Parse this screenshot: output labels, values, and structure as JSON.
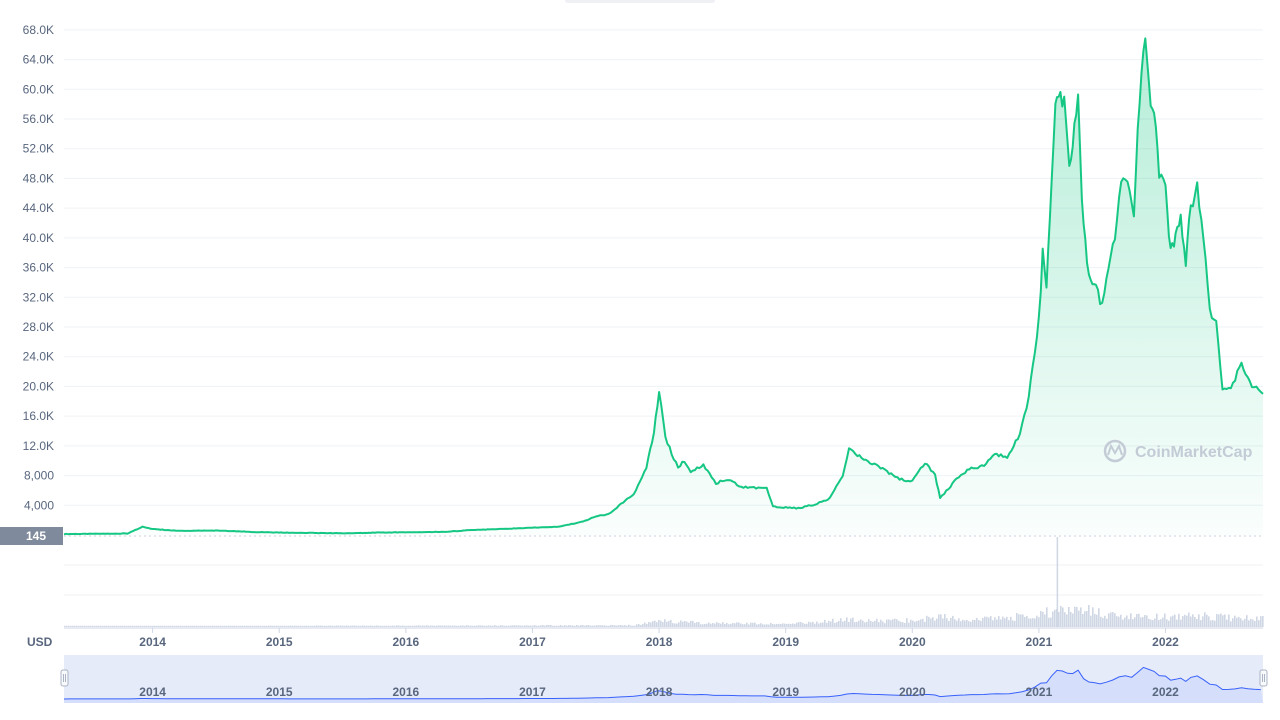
{
  "colors": {
    "line": "#16c784",
    "area_top": "#16c784",
    "grid": "#eff2f5",
    "axis_text": "#58667e",
    "volume": "#cfd6e4",
    "navigator_fill": "#e6ebfa",
    "navigator_line": "#3861fb",
    "badge_bg": "#808a9d",
    "watermark": "#c3cbd6"
  },
  "watermark": {
    "label": "CoinMarketCap",
    "icon": "coinmarketcap-logo-icon"
  },
  "price_badge": "145",
  "currency_label": "USD",
  "chart_data": {
    "type": "area",
    "x_unit": "year",
    "x_range": [
      2013.3,
      2022.77
    ],
    "ylim": [
      0,
      70000
    ],
    "y_ticks": [
      4000,
      8000,
      12000,
      16000,
      20000,
      24000,
      28000,
      32000,
      36000,
      40000,
      44000,
      48000,
      52000,
      56000,
      60000,
      64000,
      68000
    ],
    "y_tick_labels": [
      "4,000",
      "8,000",
      "12.0K",
      "16.0K",
      "20.0K",
      "24.0K",
      "28.0K",
      "32.0K",
      "36.0K",
      "40.0K",
      "44.0K",
      "48.0K",
      "52.0K",
      "56.0K",
      "60.0K",
      "64.0K",
      "68.0K"
    ],
    "x_ticks": [
      2014,
      2015,
      2016,
      2017,
      2018,
      2019,
      2020,
      2021,
      2022
    ],
    "x_tick_labels": [
      "2014",
      "2015",
      "2016",
      "2017",
      "2018",
      "2019",
      "2020",
      "2021",
      "2022"
    ],
    "grid": true,
    "legend": "none",
    "x": [
      2013.3,
      2013.8,
      2013.92,
      2014.0,
      2014.2,
      2014.5,
      2014.8,
      2015.0,
      2015.5,
      2015.9,
      2016.3,
      2016.5,
      2016.9,
      2017.0,
      2017.2,
      2017.4,
      2017.5,
      2017.6,
      2017.7,
      2017.8,
      2017.9,
      2017.96,
      2018.0,
      2018.05,
      2018.1,
      2018.15,
      2018.2,
      2018.25,
      2018.35,
      2018.45,
      2018.55,
      2018.65,
      2018.75,
      2018.85,
      2018.9,
      2019.0,
      2019.1,
      2019.25,
      2019.35,
      2019.45,
      2019.5,
      2019.6,
      2019.7,
      2019.8,
      2019.9,
      2020.0,
      2020.1,
      2020.18,
      2020.22,
      2020.35,
      2020.45,
      2020.55,
      2020.65,
      2020.75,
      2020.85,
      2020.92,
      2021.0,
      2021.03,
      2021.06,
      2021.1,
      2021.13,
      2021.17,
      2021.2,
      2021.24,
      2021.28,
      2021.31,
      2021.34,
      2021.38,
      2021.41,
      2021.45,
      2021.5,
      2021.55,
      2021.6,
      2021.65,
      2021.7,
      2021.75,
      2021.78,
      2021.81,
      2021.84,
      2021.87,
      2021.91,
      2021.95,
      2022.0,
      2022.04,
      2022.08,
      2022.12,
      2022.16,
      2022.2,
      2022.25,
      2022.3,
      2022.35,
      2022.4,
      2022.45,
      2022.5,
      2022.55,
      2022.6,
      2022.65,
      2022.7,
      2022.77
    ],
    "y": [
      130,
      200,
      1100,
      800,
      560,
      600,
      400,
      320,
      230,
      360,
      420,
      650,
      900,
      1000,
      1100,
      1800,
      2500,
      2800,
      4200,
      5500,
      9000,
      14000,
      19400,
      13000,
      11000,
      9000,
      10000,
      8500,
      9500,
      7000,
      7500,
      6500,
      6400,
      6300,
      3800,
      3700,
      3600,
      4200,
      5000,
      8000,
      11500,
      10500,
      9500,
      8500,
      7500,
      7200,
      9800,
      8000,
      5000,
      7500,
      9000,
      9200,
      11000,
      10500,
      13500,
      18500,
      29000,
      38000,
      33000,
      47000,
      57000,
      60000,
      58000,
      50000,
      55000,
      59000,
      45000,
      36000,
      34000,
      33000,
      31000,
      36000,
      40000,
      47000,
      48000,
      43000,
      55000,
      62000,
      67000,
      60000,
      57000,
      48000,
      47000,
      38000,
      40000,
      43000,
      37000,
      44000,
      47000,
      40000,
      30000,
      29000,
      20000,
      19500,
      21000,
      23500,
      21000,
      20000,
      19000
    ]
  },
  "volume_data": {
    "x": [
      2013.3,
      2017.8,
      2018.0,
      2018.3,
      2018.8,
      2019.0,
      2019.3,
      2019.5,
      2019.8,
      2020.0,
      2020.2,
      2020.5,
      2020.8,
      2021.0,
      2021.2,
      2021.4,
      2021.6,
      2021.8,
      2022.0,
      2022.3,
      2022.5,
      2022.77
    ],
    "level": [
      0.01,
      0.03,
      0.12,
      0.08,
      0.06,
      0.05,
      0.1,
      0.14,
      0.11,
      0.12,
      0.18,
      0.14,
      0.18,
      0.25,
      0.32,
      0.3,
      0.22,
      0.2,
      0.18,
      0.2,
      0.17,
      0.15
    ],
    "spike_x": 2021.14,
    "spike_level": 1.0
  }
}
